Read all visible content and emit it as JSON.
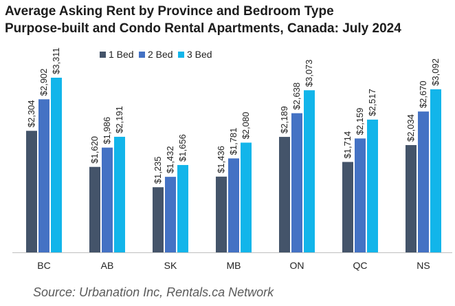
{
  "title_line1": "Average Asking Rent by Province and Bedroom Type",
  "title_line2": "Purpose-built and Condo Rental Apartments, Canada: July 2024",
  "source": "Source: Urbanation Inc, Rentals.ca Network",
  "chart_data": {
    "type": "bar",
    "title": "Average Asking Rent by Province and Bedroom Type Purpose-built and Condo Rental Apartments, Canada: July 2024",
    "categories": [
      "BC",
      "AB",
      "SK",
      "MB",
      "ON",
      "QC",
      "NS"
    ],
    "series": [
      {
        "name": "1 Bed",
        "color": "#44546a",
        "values": [
          2304,
          1620,
          1235,
          1436,
          2189,
          1714,
          2034
        ],
        "labels": [
          "$2,304",
          "$1,620",
          "$1,235",
          "$1,436",
          "$2,189",
          "$1,714",
          "$2,034"
        ]
      },
      {
        "name": "2 Bed",
        "color": "#4472c4",
        "values": [
          2902,
          1986,
          1432,
          1781,
          2638,
          2159,
          2670
        ],
        "labels": [
          "$2,902",
          "$1,986",
          "$1,432",
          "$1,781",
          "$2,638",
          "$2,159",
          "$2,670"
        ]
      },
      {
        "name": "3 Bed",
        "color": "#12b5ea",
        "values": [
          3311,
          2191,
          1656,
          2080,
          3073,
          2517,
          3092
        ],
        "labels": [
          "$3,311",
          "$2,191",
          "$1,656",
          "$2,080",
          "$3,073",
          "$2,517",
          "$3,092"
        ]
      }
    ],
    "xlabel": "",
    "ylabel": "",
    "ylim": [
      0,
      3800
    ],
    "grid": false,
    "legend": "top-center",
    "axis_color": "#bfbfbf",
    "label_color": "#222222"
  }
}
